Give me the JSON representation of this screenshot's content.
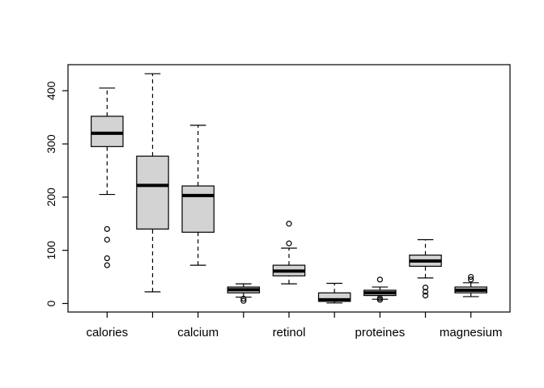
{
  "chart_data": {
    "type": "boxplot",
    "title": "",
    "xlabel": "",
    "ylabel": "",
    "background": "#ffffff",
    "box_fill": "#d3d3d3",
    "box_stroke": "#000000",
    "grid": false,
    "ylim": [
      -16,
      449
    ],
    "yticks": [
      0,
      100,
      200,
      300,
      400
    ],
    "categories": [
      "calories",
      "",
      "calcium",
      "",
      "retinol",
      "",
      "proteines",
      "",
      "magnesium"
    ],
    "groups": [
      {
        "label": "calories",
        "low": 205,
        "q1": 295,
        "median": 320,
        "q3": 352,
        "high": 405,
        "outliers": [
          140,
          120,
          85,
          72
        ]
      },
      {
        "label": "",
        "low": 22,
        "q1": 140,
        "median": 222,
        "q3": 277,
        "high": 432,
        "outliers": []
      },
      {
        "label": "calcium",
        "low": 72,
        "q1": 134,
        "median": 203,
        "q3": 221,
        "high": 335,
        "outliers": []
      },
      {
        "label": "",
        "low": 12,
        "q1": 20,
        "median": 26,
        "q3": 31,
        "high": 37,
        "outliers": [
          5,
          9
        ]
      },
      {
        "label": "retinol",
        "low": 37,
        "q1": 52,
        "median": 61,
        "q3": 72,
        "high": 104,
        "outliers": [
          150,
          113
        ]
      },
      {
        "label": "",
        "low": 1,
        "q1": 4,
        "median": 7,
        "q3": 20,
        "high": 38,
        "outliers": []
      },
      {
        "label": "proteines",
        "low": 8,
        "q1": 15,
        "median": 20,
        "q3": 25,
        "high": 31,
        "outliers": [
          45,
          10,
          7
        ]
      },
      {
        "label": "",
        "low": 48,
        "q1": 70,
        "median": 80,
        "q3": 91,
        "high": 120,
        "outliers": [
          30,
          22,
          15
        ]
      },
      {
        "label": "magnesium",
        "low": 13,
        "q1": 20,
        "median": 25,
        "q3": 31,
        "high": 39,
        "outliers": [
          50,
          45
        ]
      }
    ]
  }
}
